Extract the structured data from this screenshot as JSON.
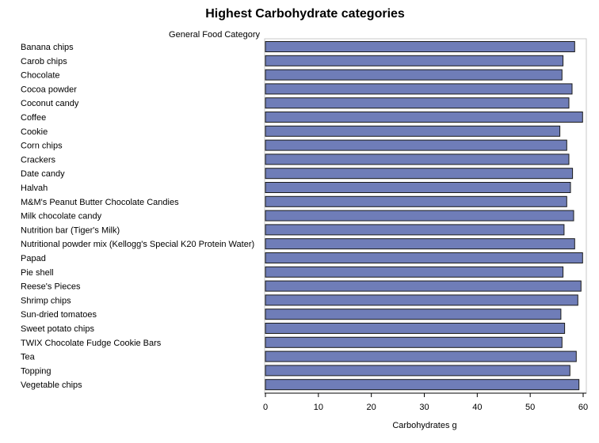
{
  "chart_data": {
    "type": "bar",
    "orientation": "horizontal",
    "title": "Highest Carbohydrate categories",
    "ylabel": "General Food Category",
    "xlabel": "Carbohydrates g",
    "xlim": [
      0,
      60
    ],
    "xticks": [
      0,
      10,
      20,
      30,
      40,
      50,
      60
    ],
    "grid": false,
    "categories": [
      "Banana chips",
      "Carob chips",
      "Chocolate",
      "Cocoa powder",
      "Coconut candy",
      "Coffee",
      "Cookie",
      "Corn chips",
      "Crackers",
      "Date candy",
      "Halvah",
      "M&M's Peanut Butter Chocolate Candies",
      "Milk chocolate candy",
      "Nutrition bar (Tiger's Milk)",
      "Nutritional powder mix (Kellogg's Special K20 Protein Water)",
      "Papad",
      "Pie shell",
      "Reese's Pieces",
      "Shrimp chips",
      "Sun-dried tomatoes",
      "Sweet potato chips",
      "TWIX Chocolate Fudge Cookie Bars",
      "Tea",
      "Topping",
      "Vegetable chips"
    ],
    "values": [
      58.4,
      56.2,
      56.0,
      57.9,
      57.3,
      59.9,
      55.6,
      56.9,
      57.3,
      58.0,
      57.6,
      56.9,
      58.2,
      56.4,
      58.4,
      59.9,
      56.2,
      59.6,
      59.0,
      55.8,
      56.5,
      56.0,
      58.7,
      57.5,
      59.2
    ],
    "colors": {
      "bar_fill": "#6f7db8",
      "bar_stroke": "#1a1a1a",
      "axis": "#000000",
      "frame": "#c8c8c8"
    }
  }
}
